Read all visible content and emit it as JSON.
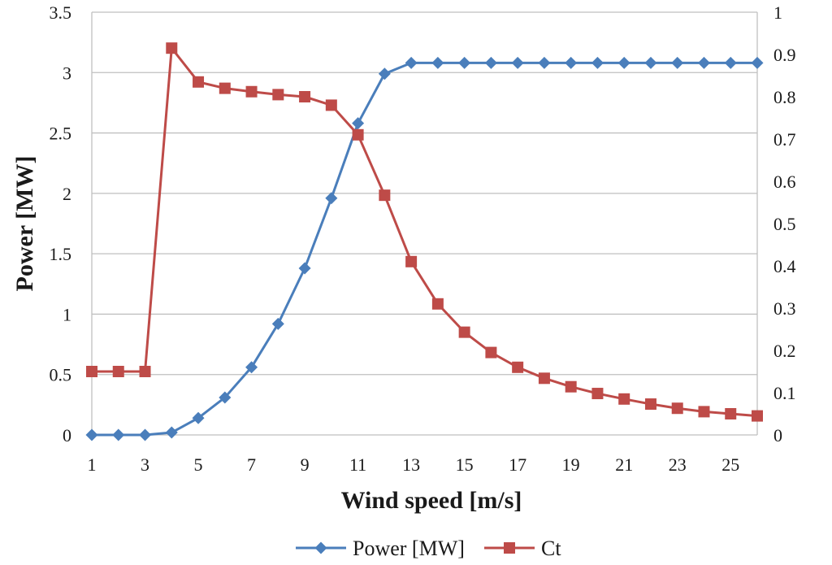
{
  "chart_data": {
    "type": "line",
    "title": "",
    "xlabel": "Wind speed [m/s]",
    "ylabel": "Power [MW]",
    "y2label": "",
    "x": [
      1,
      2,
      3,
      4,
      5,
      6,
      7,
      8,
      9,
      10,
      11,
      12,
      13,
      14,
      15,
      16,
      17,
      18,
      19,
      20,
      21,
      22,
      23,
      24,
      25,
      26
    ],
    "x_tick_labels": [
      "1",
      "3",
      "5",
      "7",
      "9",
      "11",
      "13",
      "15",
      "17",
      "19",
      "21",
      "23",
      "25"
    ],
    "x_tick_values": [
      1,
      3,
      5,
      7,
      9,
      11,
      13,
      15,
      17,
      19,
      21,
      23,
      25
    ],
    "ylim": [
      0,
      3.5
    ],
    "y_tick_labels": [
      "0",
      "0.5",
      "1",
      "1.5",
      "2",
      "2.5",
      "3",
      "3.5"
    ],
    "y_tick_values": [
      0,
      0.5,
      1,
      1.5,
      2,
      2.5,
      3,
      3.5
    ],
    "y2lim": [
      0,
      1
    ],
    "y2_tick_labels": [
      "0",
      "0.1",
      "0.2",
      "0.3",
      "0.4",
      "0.5",
      "0.6",
      "0.7",
      "0.8",
      "0.9",
      "1"
    ],
    "y2_tick_values": [
      0,
      0.1,
      0.2,
      0.3,
      0.4,
      0.5,
      0.6,
      0.7,
      0.8,
      0.9,
      1
    ],
    "grid": true,
    "legend_position": "bottom",
    "series": [
      {
        "name": "Power [MW]",
        "axis": "left",
        "color": "#4a7ebb",
        "marker": "diamond",
        "values": [
          0,
          0,
          0,
          0.02,
          0.14,
          0.31,
          0.56,
          0.92,
          1.38,
          1.96,
          2.58,
          2.99,
          3.08,
          3.08,
          3.08,
          3.08,
          3.08,
          3.08,
          3.08,
          3.08,
          3.08,
          3.08,
          3.08,
          3.08,
          3.08,
          3.08
        ]
      },
      {
        "name": "Ct",
        "axis": "right",
        "color": "#be4b48",
        "marker": "square",
        "values": [
          0.15,
          0.15,
          0.15,
          0.915,
          0.835,
          0.82,
          0.812,
          0.805,
          0.8,
          0.78,
          0.71,
          0.567,
          0.41,
          0.31,
          0.243,
          0.195,
          0.16,
          0.134,
          0.114,
          0.098,
          0.085,
          0.073,
          0.063,
          0.055,
          0.05,
          0.045
        ]
      }
    ]
  }
}
